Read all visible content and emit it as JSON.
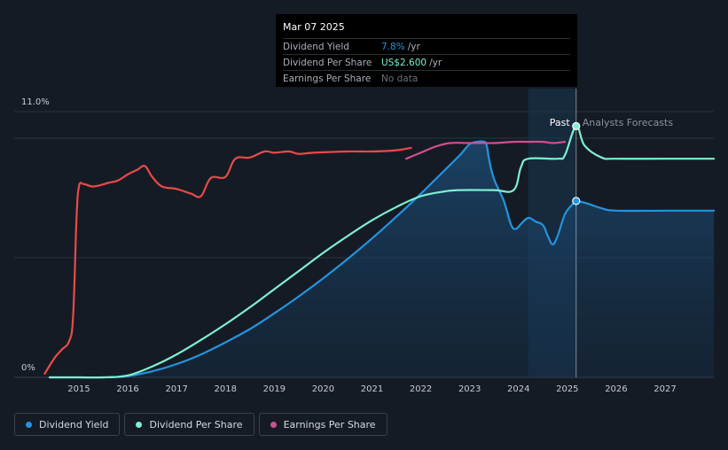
{
  "tooltip": {
    "date": "Mar 07 2025",
    "rows": [
      {
        "label": "Dividend Yield",
        "value": "7.8%",
        "unit": "/yr",
        "color": "#2394df"
      },
      {
        "label": "Dividend Per Share",
        "value": "US$2.600",
        "unit": "/yr",
        "color": "#7ef0d0"
      },
      {
        "label": "Earnings Per Share",
        "value": "No data",
        "unit": "",
        "color": "#6b717a"
      }
    ]
  },
  "legend": [
    {
      "label": "Dividend Yield",
      "color": "#2394df"
    },
    {
      "label": "Dividend Per Share",
      "color": "#7ef0d0"
    },
    {
      "label": "Earnings Per Share",
      "color": "#d0508f"
    }
  ],
  "chart_data": {
    "type": "line",
    "y_axis": {
      "labels": [
        "0%",
        "11.0%"
      ],
      "ylim": [
        0,
        11.0
      ]
    },
    "x_ticks": [
      "2015",
      "2016",
      "2017",
      "2018",
      "2019",
      "2020",
      "2021",
      "2022",
      "2023",
      "2024",
      "2025",
      "2026",
      "2027"
    ],
    "xlim": [
      2014.3,
      2028.0
    ],
    "past_label": "Past",
    "forecast_label": "Analysts Forecasts",
    "highlight_start": 2024.2,
    "tooltip_date": 2025.18,
    "series": [
      {
        "name": "Dividend Yield",
        "color": "#2394df",
        "area": true,
        "points": [
          [
            2014.4,
            0
          ],
          [
            2015.0,
            0
          ],
          [
            2015.5,
            0
          ],
          [
            2016.0,
            0.05
          ],
          [
            2016.5,
            0.25
          ],
          [
            2017.0,
            0.55
          ],
          [
            2017.5,
            0.95
          ],
          [
            2018.0,
            1.45
          ],
          [
            2018.5,
            2.0
          ],
          [
            2019.0,
            2.65
          ],
          [
            2019.5,
            3.35
          ],
          [
            2020.0,
            4.1
          ],
          [
            2020.5,
            4.9
          ],
          [
            2021.0,
            5.75
          ],
          [
            2021.5,
            6.65
          ],
          [
            2022.0,
            7.6
          ],
          [
            2022.5,
            8.6
          ],
          [
            2022.8,
            9.2
          ],
          [
            2023.0,
            9.65
          ],
          [
            2023.15,
            9.75
          ],
          [
            2023.3,
            9.75
          ],
          [
            2023.35,
            9.6
          ],
          [
            2023.4,
            9.0
          ],
          [
            2023.5,
            8.2
          ],
          [
            2023.7,
            7.3
          ],
          [
            2023.85,
            6.3
          ],
          [
            2023.95,
            6.15
          ],
          [
            2024.05,
            6.35
          ],
          [
            2024.2,
            6.6
          ],
          [
            2024.35,
            6.45
          ],
          [
            2024.5,
            6.3
          ],
          [
            2024.6,
            5.85
          ],
          [
            2024.7,
            5.5
          ],
          [
            2024.8,
            5.85
          ],
          [
            2024.95,
            6.75
          ],
          [
            2025.1,
            7.15
          ],
          [
            2025.18,
            7.3
          ],
          [
            2025.4,
            7.2
          ],
          [
            2025.7,
            7.0
          ],
          [
            2026.0,
            6.9
          ],
          [
            2027.0,
            6.9
          ],
          [
            2028.0,
            6.9
          ]
        ]
      },
      {
        "name": "Dividend Per Share",
        "color": "#7ef0d0",
        "area": false,
        "points": [
          [
            2014.4,
            0
          ],
          [
            2015.0,
            0
          ],
          [
            2015.5,
            0
          ],
          [
            2016.0,
            0.08
          ],
          [
            2016.5,
            0.45
          ],
          [
            2017.0,
            0.95
          ],
          [
            2017.5,
            1.55
          ],
          [
            2018.0,
            2.2
          ],
          [
            2018.5,
            2.9
          ],
          [
            2019.0,
            3.65
          ],
          [
            2019.5,
            4.4
          ],
          [
            2020.0,
            5.15
          ],
          [
            2020.5,
            5.85
          ],
          [
            2021.0,
            6.5
          ],
          [
            2021.5,
            7.05
          ],
          [
            2022.0,
            7.5
          ],
          [
            2022.5,
            7.7
          ],
          [
            2022.8,
            7.75
          ],
          [
            2023.5,
            7.75
          ],
          [
            2023.9,
            7.75
          ],
          [
            2024.05,
            8.7
          ],
          [
            2024.2,
            9.05
          ],
          [
            2024.8,
            9.05
          ],
          [
            2024.95,
            9.2
          ],
          [
            2025.18,
            10.4
          ],
          [
            2025.35,
            9.6
          ],
          [
            2025.7,
            9.1
          ],
          [
            2026.0,
            9.05
          ],
          [
            2027.0,
            9.05
          ],
          [
            2028.0,
            9.05
          ]
        ]
      },
      {
        "name": "Earnings Per Share",
        "color": "#d0508f",
        "area": false,
        "points": [
          [
            2021.7,
            9.05
          ],
          [
            2022.0,
            9.3
          ],
          [
            2022.3,
            9.55
          ],
          [
            2022.6,
            9.7
          ],
          [
            2023.0,
            9.7
          ],
          [
            2023.5,
            9.7
          ],
          [
            2023.9,
            9.75
          ],
          [
            2024.2,
            9.75
          ],
          [
            2024.5,
            9.75
          ],
          [
            2024.7,
            9.7
          ],
          [
            2024.95,
            9.75
          ]
        ]
      },
      {
        "name": "Earnings Per Share (past)",
        "color": "#e84a4a",
        "area": false,
        "points": [
          [
            2014.3,
            0.15
          ],
          [
            2014.5,
            0.8
          ],
          [
            2014.65,
            1.15
          ],
          [
            2014.8,
            1.5
          ],
          [
            2014.88,
            2.5
          ],
          [
            2014.95,
            6.5
          ],
          [
            2015.0,
            7.9
          ],
          [
            2015.1,
            8.0
          ],
          [
            2015.3,
            7.9
          ],
          [
            2015.6,
            8.05
          ],
          [
            2015.8,
            8.15
          ],
          [
            2016.0,
            8.4
          ],
          [
            2016.2,
            8.6
          ],
          [
            2016.35,
            8.75
          ],
          [
            2016.5,
            8.3
          ],
          [
            2016.7,
            7.9
          ],
          [
            2017.0,
            7.8
          ],
          [
            2017.3,
            7.6
          ],
          [
            2017.5,
            7.5
          ],
          [
            2017.7,
            8.25
          ],
          [
            2018.0,
            8.3
          ],
          [
            2018.2,
            9.05
          ],
          [
            2018.5,
            9.1
          ],
          [
            2018.8,
            9.35
          ],
          [
            2019.0,
            9.3
          ],
          [
            2019.3,
            9.35
          ],
          [
            2019.5,
            9.25
          ],
          [
            2019.8,
            9.3
          ],
          [
            2020.5,
            9.35
          ],
          [
            2021.0,
            9.35
          ],
          [
            2021.5,
            9.4
          ],
          [
            2021.8,
            9.5
          ]
        ]
      }
    ]
  }
}
